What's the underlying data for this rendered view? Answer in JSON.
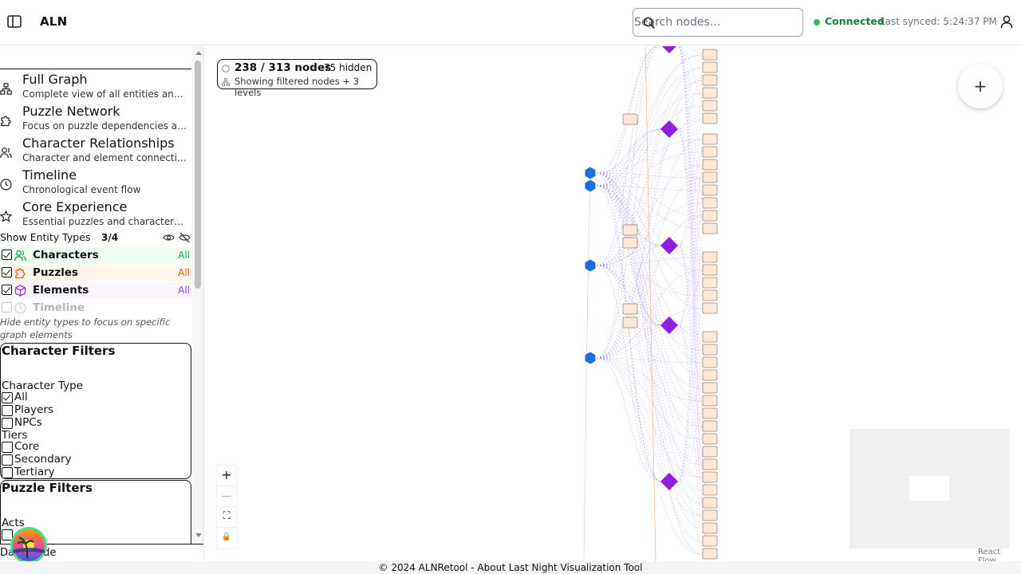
{
  "header": {
    "title": "ALN",
    "search_placeholder": "Search nodes...",
    "status": "Connected",
    "last_synced": "Last synced: 5:24:37 PM"
  },
  "sidebar": {
    "views": [
      {
        "title": "Full Graph",
        "desc": "Complete view of all entities and relationships",
        "icon": "network-icon"
      },
      {
        "title": "Puzzle Network",
        "desc": "Focus on puzzle dependencies and rewards",
        "icon": "puzzle-icon"
      },
      {
        "title": "Character Relationships",
        "desc": "Character and element connections",
        "icon": "users-icon"
      },
      {
        "title": "Timeline",
        "desc": "Chronological event flow",
        "icon": "clock-icon"
      },
      {
        "title": "Core Experience",
        "desc": "Essential puzzles and characters only",
        "icon": "star-icon"
      }
    ],
    "entity_types": {
      "heading": "Show Entity Types",
      "count": "3/4",
      "items": [
        {
          "label": "Characters",
          "badge": "All",
          "checked": true,
          "color": "#16a34a",
          "bg": "#f0fdf4"
        },
        {
          "label": "Puzzles",
          "badge": "All",
          "checked": true,
          "color": "#ea580c",
          "bg": "#fff7ed"
        },
        {
          "label": "Elements",
          "badge": "All",
          "checked": true,
          "color": "#9333ea",
          "bg": "#faf5ff"
        },
        {
          "label": "Timeline",
          "badge": "",
          "checked": false,
          "color": "#9ca3af",
          "bg": "#ffffff"
        }
      ],
      "hint": "Hide entity types to focus on specific graph elements"
    },
    "character_filters": {
      "title": "Character Filters",
      "type_label": "Character Type",
      "type_options": [
        {
          "label": "All",
          "checked": true
        },
        {
          "label": "Players",
          "checked": false
        },
        {
          "label": "NPCs",
          "checked": false
        }
      ],
      "tiers_label": "Tiers",
      "tier_options": [
        {
          "label": "Core",
          "checked": false
        },
        {
          "label": "Secondary",
          "checked": false
        },
        {
          "label": "Tertiary",
          "checked": false
        }
      ]
    },
    "puzzle_filters": {
      "title": "Puzzle Filters",
      "acts_label": "Acts"
    },
    "dark_mode_label": "Dark Mode"
  },
  "canvas": {
    "stats": {
      "count": "238 / 313 nodes",
      "hidden": "75 hidden",
      "desc": "Showing filtered nodes + 3 levels"
    },
    "fab_label": "+",
    "controls": [
      "+",
      "—",
      "⛶",
      "🔒"
    ],
    "attribution": "React Flow"
  },
  "footer": {
    "text": "© 2024 ALNRetool - About Last Night Visualization Tool"
  },
  "colors": {
    "character": "#1d6fe0",
    "element": "#8f1ee0",
    "puzzle_box_fill": "#fde8d8",
    "puzzle_box_stroke": "#a0826d",
    "connected": "#22c55e"
  }
}
